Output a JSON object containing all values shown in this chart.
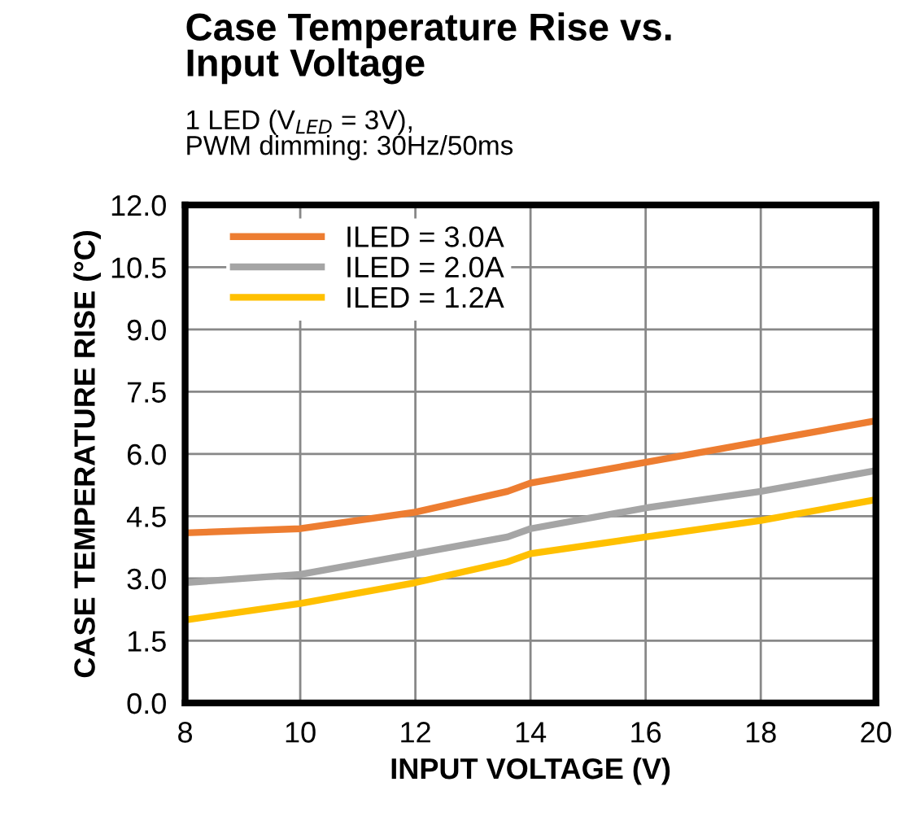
{
  "chart_data": {
    "type": "line",
    "title": "Case Temperature Rise vs.\nInput Voltage",
    "subtitle": "1 LED (V$_{LED}$ = 3V),\nPWM dimming: 30Hz/50ms",
    "xlabel": "INPUT VOLTAGE (V)",
    "ylabel": "CASE TEMPERATURE RISE (°C)",
    "x": [
      8,
      10,
      12,
      13.6,
      14,
      16,
      18,
      20
    ],
    "series": [
      {
        "name": "ILED = 3.0A",
        "color": "#ed7d31",
        "values": [
          4.1,
          4.2,
          4.6,
          5.1,
          5.3,
          5.8,
          6.3,
          6.8
        ]
      },
      {
        "name": "ILED = 2.0A",
        "color": "#a5a5a5",
        "values": [
          2.9,
          3.1,
          3.6,
          4.0,
          4.2,
          4.7,
          5.1,
          5.6
        ]
      },
      {
        "name": "ILED = 1.2A",
        "color": "#ffc000",
        "values": [
          2.0,
          2.4,
          2.9,
          3.4,
          3.6,
          4.0,
          4.4,
          4.9
        ]
      }
    ],
    "xlim": [
      8,
      20
    ],
    "xticks": [
      8,
      10,
      12,
      14,
      16,
      18,
      20
    ],
    "ylim": [
      0,
      12
    ],
    "yticks": [
      {
        "value": 0,
        "label": "0.0"
      },
      {
        "value": 1.5,
        "label": "1.5"
      },
      {
        "value": 3,
        "label": "3.0"
      },
      {
        "value": 4.5,
        "label": "4.5"
      },
      {
        "value": 6,
        "label": "6.0"
      },
      {
        "value": 7.5,
        "label": "7.5"
      },
      {
        "value": 9,
        "label": "9.0"
      },
      {
        "value": 10.5,
        "label": "10.5"
      },
      {
        "value": 12,
        "label": "12.0"
      }
    ],
    "grid": true,
    "legend": "top left",
    "marker": "none",
    "line_style": "solid"
  }
}
